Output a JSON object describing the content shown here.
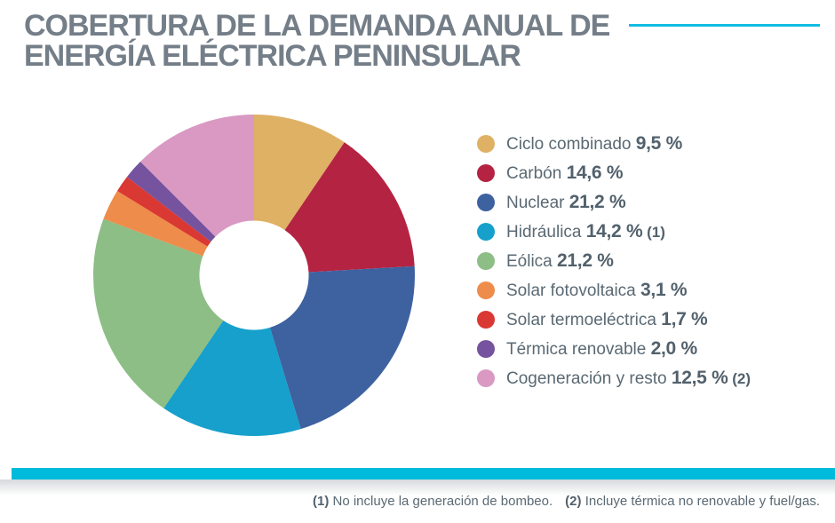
{
  "title": {
    "lines": [
      "COBERTURA DE LA DEMANDA ANUAL DE",
      "ENERGÍA ELÉCTRICA PENINSULAR"
    ]
  },
  "accent": {
    "top_line_color": "#12BDE4",
    "bottom_bar_color": "#00BBDC"
  },
  "chart_data": {
    "type": "pie",
    "donut": true,
    "title": "Cobertura de la demanda anual de energía eléctrica peninsular",
    "start_angle_deg": -90,
    "direction": "clockwise",
    "inner_radius_ratio": 0.34,
    "legend_position": "right",
    "units": "%",
    "segments": [
      {
        "label": "Ciclo combinado",
        "value": 9.5,
        "display": "9,5 %",
        "suffix": "",
        "color": "#DFB164"
      },
      {
        "label": "Carbón",
        "value": 14.6,
        "display": "14,6 %",
        "suffix": "",
        "color": "#B52342"
      },
      {
        "label": "Nuclear",
        "value": 21.2,
        "display": "21,2 %",
        "suffix": "",
        "color": "#3E61A0"
      },
      {
        "label": "Hidráulica",
        "value": 14.2,
        "display": "14,2 %",
        "suffix": "(1)",
        "color": "#16A0CB"
      },
      {
        "label": "Eólica",
        "value": 21.2,
        "display": "21,2 %",
        "suffix": "",
        "color": "#8CBE85"
      },
      {
        "label": "Solar fotovoltaica",
        "value": 3.1,
        "display": "3,1 %",
        "suffix": "",
        "color": "#EE8C4B"
      },
      {
        "label": "Solar termoeléctrica",
        "value": 1.7,
        "display": "1,7 %",
        "suffix": "",
        "color": "#DA3832"
      },
      {
        "label": "Térmica renovable",
        "value": 2.0,
        "display": "2,0 %",
        "suffix": "",
        "color": "#75539F"
      },
      {
        "label": "Cogeneración y resto",
        "value": 12.5,
        "display": "12,5 %",
        "suffix": "(2)",
        "color": "#D999C3"
      }
    ]
  },
  "footnotes": [
    {
      "marker": "(1)",
      "text": "No incluye la generación de bombeo."
    },
    {
      "marker": "(2)",
      "text": "Incluye térmica no renovable y fuel/gas."
    }
  ]
}
